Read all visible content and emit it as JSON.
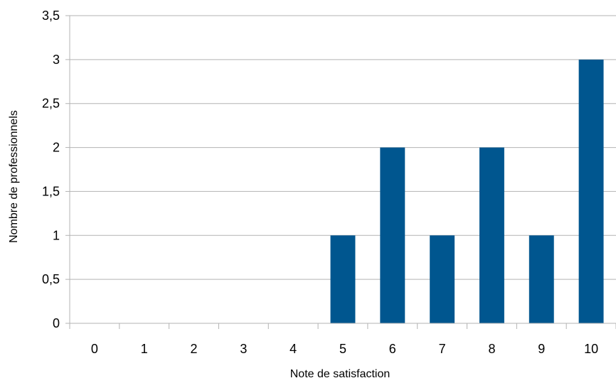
{
  "chart_data": {
    "type": "bar",
    "categories": [
      "0",
      "1",
      "2",
      "3",
      "4",
      "5",
      "6",
      "7",
      "8",
      "9",
      "10"
    ],
    "series": [
      {
        "values": [
          0,
          0,
          0,
          0,
          0,
          1,
          2,
          1,
          2,
          1,
          3
        ]
      }
    ],
    "xlabel": "Note de satisfaction",
    "ylabel": "Nombre de professionnels",
    "ylim": [
      0,
      3.5
    ],
    "yticks": [
      "0",
      "0,5",
      "1",
      "1,5",
      "2",
      "2,5",
      "3",
      "3,5"
    ],
    "grid": true,
    "legend": "none",
    "colors": {
      "bar": "#00568f",
      "grid": "#b3b3b3"
    }
  }
}
